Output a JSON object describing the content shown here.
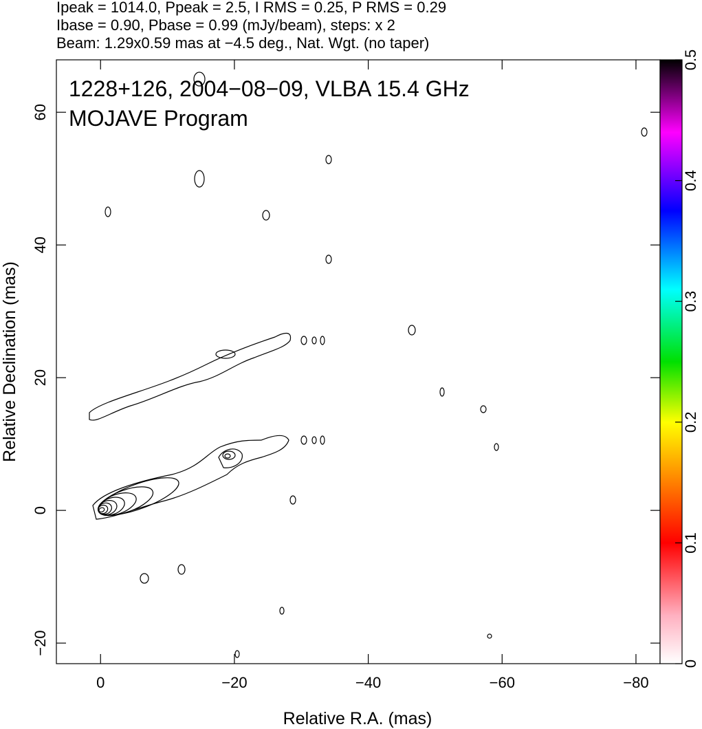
{
  "chart_data": {
    "type": "contour",
    "header": [
      "Ipeak = 1014.0, Ppeak = 2.5, I RMS = 0.25, P RMS = 0.29",
      "Ibase = 0.90, Pbase = 0.99 (mJy/beam), steps: x 2",
      "Beam: 1.29x0.59 mas at −4.5 deg., Nat. Wgt. (no taper)"
    ],
    "annotations": [
      "1228+126, 2004−08−09, VLBA 15.4 GHz",
      "MOJAVE Program"
    ],
    "x_label": "Relative R.A. (mas)",
    "y_label": "Relative Declination (mas)",
    "xlim": [
      6.6,
      -83.6
    ],
    "xticks": [
      0,
      {
        "value": -20,
        "label": "−20"
      },
      {
        "value": -40,
        "label": "−40"
      },
      {
        "value": -60,
        "label": "−60"
      },
      {
        "value": -80,
        "label": "−80"
      }
    ],
    "ylim": [
      -23.1,
      67.9
    ],
    "yticks": [
      {
        "value": -20,
        "label": "−20"
      },
      0,
      20,
      40,
      60
    ],
    "colorbar_lim": [
      0,
      0.5
    ],
    "colorbar_ticks": [
      0,
      0.1,
      0.2,
      0.3,
      0.4,
      0.5
    ]
  }
}
